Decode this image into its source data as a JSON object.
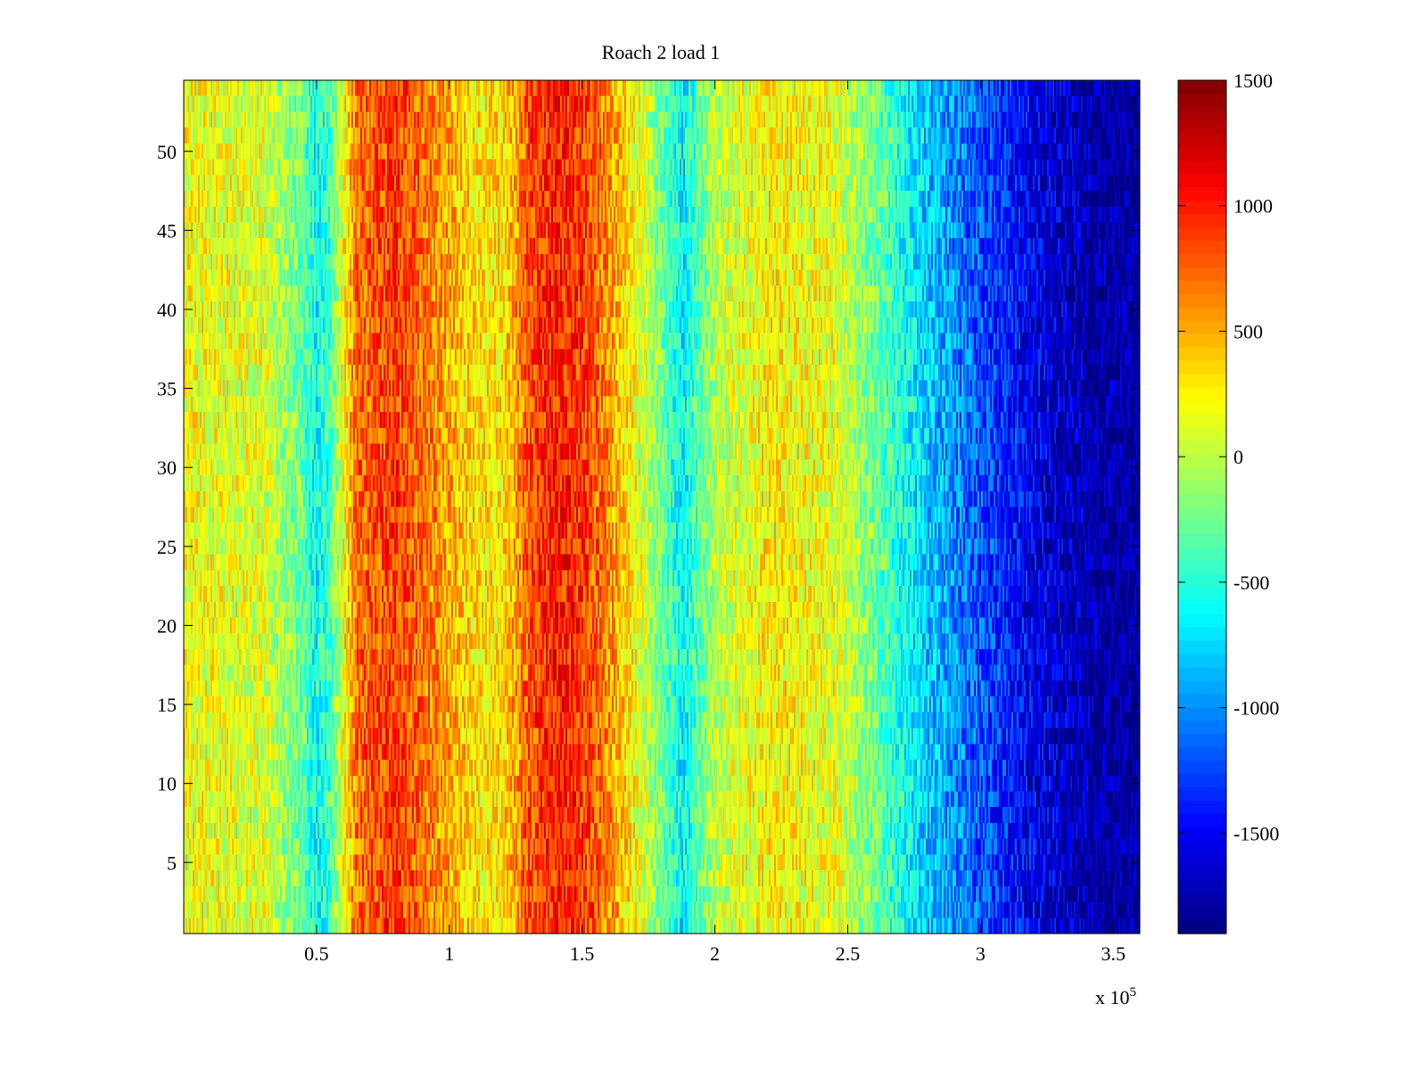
{
  "chart_data": {
    "type": "heatmap",
    "title": "Roach 2 load 1",
    "xlabel": "",
    "ylabel": "",
    "x_exponent_label": "x 10",
    "x_exponent_power": "5",
    "xlim": [
      0,
      3.6
    ],
    "ylim": [
      0.5,
      54.5
    ],
    "x_ticks": [
      0.5,
      1,
      1.5,
      2,
      2.5,
      3,
      3.5
    ],
    "x_tick_labels": [
      "0.5",
      "1",
      "1.5",
      "2",
      "2.5",
      "3",
      "3.5"
    ],
    "y_ticks": [
      5,
      10,
      15,
      20,
      25,
      30,
      35,
      40,
      45,
      50
    ],
    "y_tick_labels": [
      "5",
      "10",
      "15",
      "20",
      "25",
      "30",
      "35",
      "40",
      "45",
      "50"
    ],
    "rows": 54,
    "colormap": "jet",
    "colorbar": {
      "range": [
        -1900,
        1500
      ],
      "ticks": [
        1500,
        1000,
        500,
        0,
        -500,
        -1000,
        -1500
      ],
      "tick_labels": [
        "1500",
        "1000",
        "500",
        "0",
        "-500",
        "-1000",
        "-1500"
      ]
    },
    "column_profile": {
      "x": [
        0,
        0.3,
        0.45,
        0.5,
        0.55,
        0.65,
        0.8,
        1.0,
        1.1,
        1.2,
        1.3,
        1.4,
        1.5,
        1.6,
        1.75,
        1.88,
        2.0,
        2.2,
        2.45,
        2.6,
        2.8,
        3.0,
        3.2,
        3.4,
        3.6
      ],
      "values": [
        200,
        100,
        -300,
        -600,
        -400,
        700,
        900,
        500,
        300,
        300,
        800,
        1000,
        900,
        600,
        0,
        -650,
        0,
        250,
        150,
        -250,
        -800,
        -1200,
        -1550,
        -1750,
        -1850
      ]
    },
    "noise_amplitude": 350
  }
}
